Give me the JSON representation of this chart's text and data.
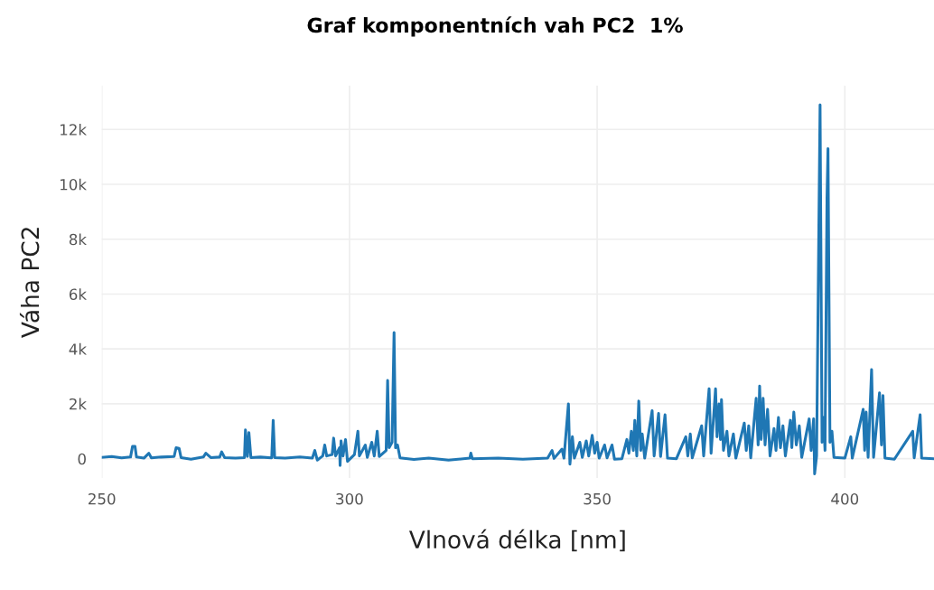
{
  "chart_data": {
    "type": "line",
    "title": "Graf komponentních vah PC2  1%",
    "xlabel": "Vlnová délka [nm]",
    "ylabel": "Váha PC2",
    "xlim": [
      250,
      418
    ],
    "xticks": [
      250,
      300,
      350,
      400
    ],
    "ylim": [
      -700,
      13600
    ],
    "yticks": [
      0,
      {
        "value": 2000,
        "label": "2k"
      },
      {
        "value": 4000,
        "label": "4k"
      },
      {
        "value": 6000,
        "label": "6k"
      },
      {
        "value": 8000,
        "label": "8k"
      },
      {
        "value": 10000,
        "label": "10k"
      },
      {
        "value": 12000,
        "label": "12k"
      }
    ],
    "grid": true,
    "series": [
      {
        "color": "#1f77b4",
        "x": [
          250,
          252,
          254,
          255.8,
          256.2,
          256.7,
          257,
          258.5,
          259.5,
          260,
          262,
          264.6,
          265,
          265.6,
          266,
          268,
          270.5,
          271,
          272,
          273.8,
          274.2,
          274.8,
          277,
          278.8,
          279,
          279.4,
          279.7,
          280.1,
          282,
          284.3,
          284.6,
          284.9,
          287,
          290,
          292.5,
          293,
          293.5,
          294.6,
          295,
          295.4,
          296.5,
          296.8,
          297.2,
          298,
          298.1,
          298.3,
          298.7,
          299.2,
          299.6,
          301,
          301.7,
          302,
          303.2,
          303.6,
          304.5,
          305,
          305.6,
          306,
          307.4,
          307.7,
          308,
          308.6,
          309,
          309.3,
          309.7,
          310.2,
          313,
          316,
          320,
          324.3,
          324.5,
          324.8,
          330,
          335,
          340,
          340.9,
          341.3,
          342.9,
          343.3,
          344.2,
          344.5,
          345,
          345.4,
          346.5,
          347,
          347.8,
          348.3,
          349,
          349.5,
          350,
          350.4,
          351.5,
          352,
          353,
          353.5,
          355,
          356,
          356.4,
          356.9,
          357.3,
          357.6,
          358,
          358.4,
          358.8,
          359.1,
          359.6,
          361.1,
          361.5,
          362.4,
          362.8,
          363.7,
          364.2,
          366,
          367.9,
          368.3,
          368.8,
          369.2,
          371.1,
          371.5,
          372.6,
          373,
          373.9,
          374.2,
          374.6,
          374.9,
          375.1,
          375.5,
          376.2,
          376.6,
          377.5,
          378,
          379.7,
          380.1,
          380.6,
          381,
          382.1,
          382.5,
          382.8,
          383.1,
          383.5,
          383.9,
          384.4,
          384.9,
          385.7,
          386.1,
          386.6,
          387,
          387.5,
          388,
          389,
          389.3,
          389.7,
          390.2,
          390.8,
          391.3,
          392.8,
          393.2,
          393.7,
          393.9,
          394.3,
          395,
          395.4,
          395.7,
          396,
          396.4,
          396.6,
          397,
          397.4,
          397.8,
          400,
          401.2,
          401.5,
          403.7,
          404,
          404.3,
          404.7,
          405.4,
          405.8,
          407,
          407.4,
          407.7,
          408.1,
          410,
          413.7,
          414,
          415.2,
          415.5,
          418
        ],
        "values": [
          50,
          80,
          30,
          60,
          450,
          450,
          60,
          20,
          200,
          30,
          60,
          80,
          400,
          380,
          40,
          -20,
          60,
          200,
          40,
          60,
          250,
          40,
          20,
          40,
          1050,
          80,
          950,
          40,
          60,
          30,
          1400,
          40,
          20,
          60,
          20,
          300,
          -50,
          100,
          500,
          100,
          150,
          750,
          100,
          400,
          -250,
          650,
          100,
          700,
          -100,
          150,
          1000,
          100,
          500,
          50,
          600,
          100,
          1000,
          80,
          300,
          2850,
          400,
          600,
          4600,
          400,
          500,
          30,
          -30,
          20,
          -50,
          20,
          200,
          0,
          20,
          -20,
          20,
          300,
          10,
          350,
          20,
          2000,
          -200,
          800,
          20,
          600,
          50,
          650,
          100,
          850,
          200,
          600,
          20,
          500,
          30,
          500,
          -20,
          0,
          700,
          200,
          1000,
          300,
          1400,
          100,
          2100,
          300,
          900,
          20,
          1750,
          100,
          1650,
          80,
          1600,
          20,
          0,
          800,
          100,
          900,
          30,
          1200,
          100,
          2550,
          200,
          2550,
          800,
          2000,
          700,
          2150,
          300,
          1000,
          100,
          900,
          20,
          1300,
          300,
          1200,
          30,
          2200,
          500,
          2650,
          700,
          2200,
          500,
          1800,
          100,
          1100,
          300,
          1500,
          400,
          1200,
          100,
          1400,
          400,
          1700,
          500,
          1200,
          50,
          1450,
          300,
          1450,
          -550,
          100,
          12900,
          600,
          1500,
          300,
          9500,
          11300,
          600,
          1000,
          50,
          20,
          800,
          20,
          1800,
          300,
          1700,
          50,
          3250,
          50,
          2400,
          500,
          2300,
          20,
          -20,
          1000,
          30,
          1600,
          20,
          0
        ]
      }
    ]
  }
}
